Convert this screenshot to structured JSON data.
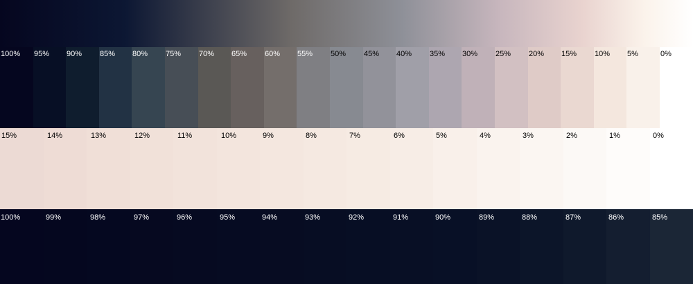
{
  "top_gradient": {
    "stops": [
      "#05061f",
      "#0c1733",
      "#6e6a68",
      "#8e9098",
      "#c7b6bd",
      "#e9d3cf",
      "#fbf3eb",
      "#ffffff"
    ]
  },
  "rows": [
    {
      "id": "row-1",
      "swatches": [
        {
          "label": "100%",
          "color": "#05061f",
          "text_color": "#ffffff"
        },
        {
          "label": "95%",
          "color": "#070f25",
          "text_color": "#ffffff"
        },
        {
          "label": "90%",
          "color": "#0f1d2e",
          "text_color": "#ffffff"
        },
        {
          "label": "85%",
          "color": "#223244",
          "text_color": "#ffffff"
        },
        {
          "label": "80%",
          "color": "#364551",
          "text_color": "#ffffff"
        },
        {
          "label": "75%",
          "color": "#474e56",
          "text_color": "#ffffff"
        },
        {
          "label": "70%",
          "color": "#5a5855",
          "text_color": "#ffffff"
        },
        {
          "label": "65%",
          "color": "#67605e",
          "text_color": "#ffffff"
        },
        {
          "label": "60%",
          "color": "#746e6b",
          "text_color": "#ffffff"
        },
        {
          "label": "55%",
          "color": "#7f7f83",
          "text_color": "#ffffff"
        },
        {
          "label": "50%",
          "color": "#878a91",
          "text_color": "#000000"
        },
        {
          "label": "45%",
          "color": "#92929a",
          "text_color": "#000000"
        },
        {
          "label": "40%",
          "color": "#a09fa8",
          "text_color": "#000000"
        },
        {
          "label": "35%",
          "color": "#ada6b0",
          "text_color": "#000000"
        },
        {
          "label": "30%",
          "color": "#c0b1b8",
          "text_color": "#000000"
        },
        {
          "label": "25%",
          "color": "#d2c0c2",
          "text_color": "#000000"
        },
        {
          "label": "20%",
          "color": "#dfcbc7",
          "text_color": "#000000"
        },
        {
          "label": "15%",
          "color": "#ead8d1",
          "text_color": "#000000"
        },
        {
          "label": "10%",
          "color": "#f4e7de",
          "text_color": "#000000"
        },
        {
          "label": "5%",
          "color": "#f9f1ea",
          "text_color": "#000000"
        },
        {
          "label": "0%",
          "color": "#ffffff",
          "text_color": "#000000"
        }
      ]
    },
    {
      "id": "row-2",
      "swatches": [
        {
          "label": "15%",
          "color": "#ecdad4",
          "text_color": "#000000"
        },
        {
          "label": "14%",
          "color": "#eedcd5",
          "text_color": "#000000"
        },
        {
          "label": "13%",
          "color": "#f0dfd7",
          "text_color": "#000000"
        },
        {
          "label": "12%",
          "color": "#f1e1d9",
          "text_color": "#000000"
        },
        {
          "label": "11%",
          "color": "#f2e3db",
          "text_color": "#000000"
        },
        {
          "label": "10%",
          "color": "#f3e5dd",
          "text_color": "#000000"
        },
        {
          "label": "9%",
          "color": "#f4e7df",
          "text_color": "#000000"
        },
        {
          "label": "8%",
          "color": "#f5e9e1",
          "text_color": "#000000"
        },
        {
          "label": "7%",
          "color": "#f6ebe3",
          "text_color": "#000000"
        },
        {
          "label": "6%",
          "color": "#f7ede6",
          "text_color": "#000000"
        },
        {
          "label": "5%",
          "color": "#f9f0ea",
          "text_color": "#000000"
        },
        {
          "label": "4%",
          "color": "#faf3ee",
          "text_color": "#000000"
        },
        {
          "label": "3%",
          "color": "#fbf6f2",
          "text_color": "#000000"
        },
        {
          "label": "2%",
          "color": "#fcf9f6",
          "text_color": "#000000"
        },
        {
          "label": "1%",
          "color": "#fefcfa",
          "text_color": "#000000"
        },
        {
          "label": "0%",
          "color": "#ffffff",
          "text_color": "#000000"
        }
      ]
    },
    {
      "id": "row-3",
      "swatches": [
        {
          "label": "100%",
          "color": "#05061f",
          "text_color": "#ffffff"
        },
        {
          "label": "99%",
          "color": "#05071f",
          "text_color": "#ffffff"
        },
        {
          "label": "98%",
          "color": "#050820",
          "text_color": "#ffffff"
        },
        {
          "label": "97%",
          "color": "#060920",
          "text_color": "#ffffff"
        },
        {
          "label": "96%",
          "color": "#060a21",
          "text_color": "#ffffff"
        },
        {
          "label": "95%",
          "color": "#060b22",
          "text_color": "#ffffff"
        },
        {
          "label": "94%",
          "color": "#070c22",
          "text_color": "#ffffff"
        },
        {
          "label": "93%",
          "color": "#070d23",
          "text_color": "#ffffff"
        },
        {
          "label": "92%",
          "color": "#070e24",
          "text_color": "#ffffff"
        },
        {
          "label": "91%",
          "color": "#080f25",
          "text_color": "#ffffff"
        },
        {
          "label": "90%",
          "color": "#081026",
          "text_color": "#ffffff"
        },
        {
          "label": "89%",
          "color": "#0a1227",
          "text_color": "#ffffff"
        },
        {
          "label": "88%",
          "color": "#0c1529",
          "text_color": "#ffffff"
        },
        {
          "label": "87%",
          "color": "#0f192c",
          "text_color": "#ffffff"
        },
        {
          "label": "86%",
          "color": "#141e30",
          "text_color": "#ffffff"
        },
        {
          "label": "85%",
          "color": "#1b2636",
          "text_color": "#ffffff"
        }
      ]
    }
  ]
}
